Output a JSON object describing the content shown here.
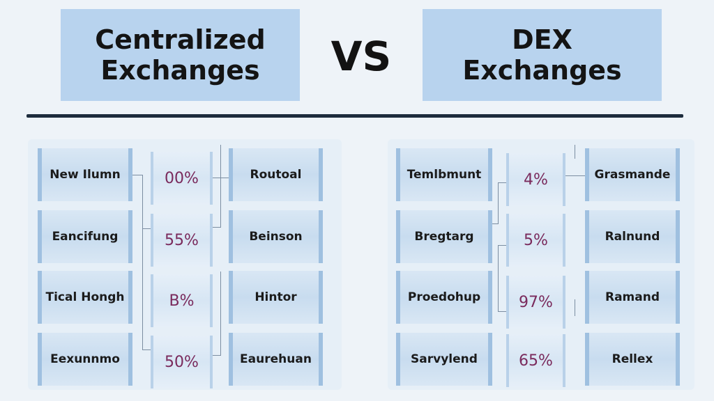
{
  "header": {
    "left_title_line1": "Centralized",
    "left_title_line2": "Exchanges",
    "vs_label": "VS",
    "right_title_line1": "DEX",
    "right_title_line2": "Exchanges"
  },
  "left_panel": {
    "rows": [
      {
        "name": "New Ilumn",
        "percent": "00%",
        "result": "Routoal"
      },
      {
        "name": "Eancifung",
        "percent": "55%",
        "result": "Beinson"
      },
      {
        "name": "Tical Hongh",
        "percent": "B%",
        "result": "Hintor"
      },
      {
        "name": "Eexunnmo",
        "percent": "50%",
        "result": "Eaurehuan"
      }
    ]
  },
  "right_panel": {
    "rows": [
      {
        "name": "Temlbmunt",
        "percent": "4%",
        "result": "Grasmande"
      },
      {
        "name": "Bregtarg",
        "percent": "5%",
        "result": "Ralnund"
      },
      {
        "name": "Proedohup",
        "percent": "97%",
        "result": "Ramand"
      },
      {
        "name": "Sarvylend",
        "percent": "65%",
        "result": "Rellex"
      }
    ]
  }
}
